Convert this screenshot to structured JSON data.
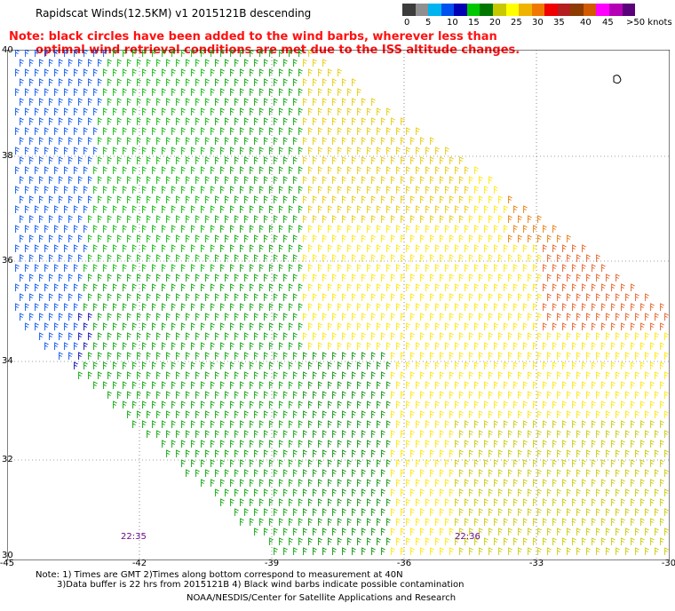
{
  "title": "Rapidscat Winds(12.5KM) v1 2015121B descending",
  "note_line1": "Note: black circles have been added to the wind barbs, wherever less than",
  "note_line2": "optimal wind retrieval conditions are met due to the ISS altitude changes.",
  "colorbar": {
    "colors": [
      "#3c3c3c",
      "#909090",
      "#00b4f0",
      "#0050f0",
      "#0000b4",
      "#00c800",
      "#007800",
      "#c8c800",
      "#ffff00",
      "#f0b400",
      "#f07800",
      "#f00000",
      "#b41e1e",
      "#8c3c00",
      "#d25a00",
      "#ff00ff",
      "#b400b4",
      "#5a007a"
    ],
    "labels": [
      "0",
      "5",
      "10",
      "15",
      "20",
      "25",
      "30",
      "35",
      "40",
      "45",
      ">50 knots"
    ]
  },
  "x_ticks": [
    "-45",
    "-42",
    "-39",
    "-36",
    "-33",
    "-30"
  ],
  "y_ticks": [
    "40",
    "38",
    "36",
    "34",
    "32",
    "30"
  ],
  "time_labels": [
    "22:35",
    "22:36"
  ],
  "footer": {
    "line1": "Note: 1) Times are GMT 2)Times along bottom correspond to measurement at 40N",
    "line2": "3)Data buffer is 22 hrs from 2015121B 4) Black wind barbs indicate possible contamination",
    "credit": "NOAA/NESDIS/Center for Satellite Applications and Research"
  }
}
